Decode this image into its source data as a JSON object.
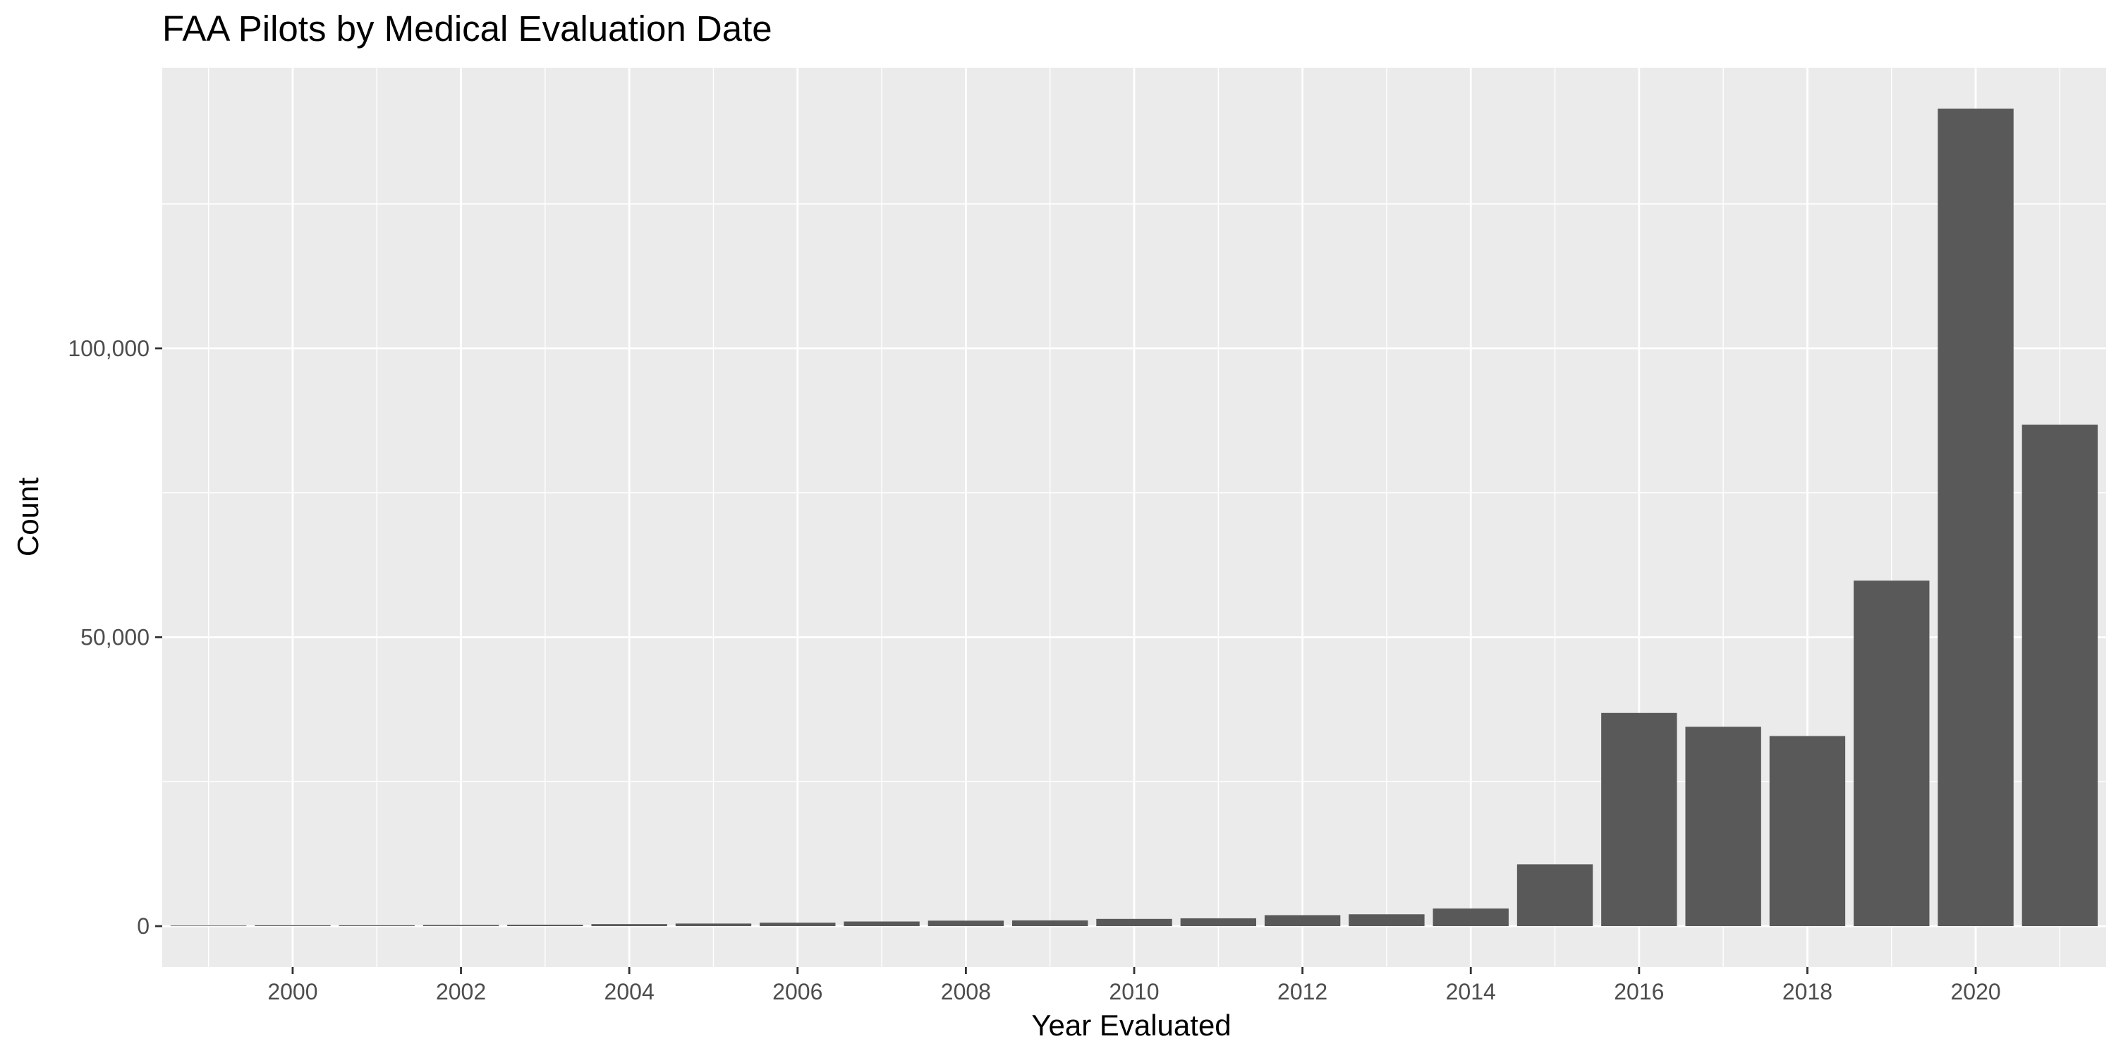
{
  "chart_data": {
    "type": "bar",
    "title": "FAA Pilots by Medical Evaluation Date",
    "xlabel": "Year Evaluated",
    "ylabel": "Count",
    "categories": [
      1999,
      2000,
      2001,
      2002,
      2003,
      2004,
      2005,
      2006,
      2007,
      2008,
      2009,
      2010,
      2011,
      2012,
      2013,
      2014,
      2015,
      2016,
      2017,
      2018,
      2019,
      2020,
      2021
    ],
    "values": [
      100,
      150,
      150,
      200,
      250,
      350,
      450,
      600,
      800,
      950,
      1000,
      1250,
      1350,
      1900,
      2050,
      3050,
      10700,
      36900,
      34500,
      32900,
      59800,
      141500,
      86800
    ],
    "x_ticks": [
      "2000",
      "2002",
      "2004",
      "2006",
      "2008",
      "2010",
      "2012",
      "2014",
      "2016",
      "2018",
      "2020"
    ],
    "y_ticks": [
      "0",
      "50,000",
      "100,000"
    ],
    "xlim": [
      1998.45,
      2021.55
    ],
    "ylim": [
      -7075,
      148575
    ],
    "grid": true,
    "colors": {
      "panel": "#ebebeb",
      "grid": "#ffffff",
      "bar": "#595959",
      "tick": "#333333"
    }
  }
}
